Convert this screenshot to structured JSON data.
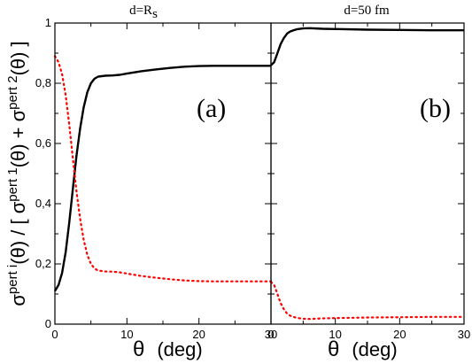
{
  "chart_data": [
    {
      "type": "line",
      "title_main": "d=R",
      "title_sub": "s",
      "panel_label": "(a)",
      "xlabel": "θ (deg)",
      "xlim": [
        0,
        30
      ],
      "ylim": [
        0,
        1
      ],
      "x_ticks": [
        "0",
        "10",
        "20",
        "30"
      ],
      "y_ticks": [
        "0",
        "0,2",
        "0,4",
        "0,6",
        "0,8",
        "1"
      ],
      "series": [
        {
          "style": "solid",
          "color": "#000000",
          "x": [
            0,
            0.5,
            1,
            1.5,
            2,
            2.5,
            3,
            3.5,
            4,
            4.5,
            5,
            5.5,
            6,
            7,
            8,
            9,
            10,
            12,
            14,
            16,
            18,
            20,
            22,
            24,
            26,
            28,
            30
          ],
          "y": [
            0.11,
            0.13,
            0.17,
            0.24,
            0.34,
            0.45,
            0.56,
            0.65,
            0.72,
            0.77,
            0.8,
            0.815,
            0.822,
            0.825,
            0.826,
            0.828,
            0.832,
            0.84,
            0.846,
            0.851,
            0.855,
            0.857,
            0.858,
            0.858,
            0.858,
            0.858,
            0.858
          ]
        },
        {
          "style": "dotted",
          "color": "#ff0000",
          "x": [
            0,
            0.5,
            1,
            1.5,
            2,
            2.5,
            3,
            3.5,
            4,
            4.5,
            5,
            5.5,
            6,
            7,
            8,
            9,
            10,
            12,
            14,
            16,
            18,
            20,
            22,
            24,
            26,
            28,
            30
          ],
          "y": [
            0.89,
            0.87,
            0.83,
            0.76,
            0.66,
            0.55,
            0.44,
            0.35,
            0.28,
            0.23,
            0.2,
            0.185,
            0.178,
            0.175,
            0.174,
            0.172,
            0.168,
            0.16,
            0.154,
            0.149,
            0.145,
            0.143,
            0.142,
            0.142,
            0.142,
            0.142,
            0.142
          ]
        }
      ]
    },
    {
      "type": "line",
      "title_main": "d=50 fm",
      "title_sub": "",
      "panel_label": "(b)",
      "xlabel": "θ (deg)",
      "xlim": [
        0,
        30
      ],
      "ylim": [
        0,
        1
      ],
      "x_ticks": [
        "0",
        "10",
        "20",
        "30"
      ],
      "y_ticks": [],
      "series": [
        {
          "style": "solid",
          "color": "#000000",
          "x": [
            0,
            0.5,
            1,
            1.5,
            2,
            2.5,
            3,
            3.5,
            4,
            5,
            6,
            8,
            10,
            15,
            20,
            25,
            30
          ],
          "y": [
            0.86,
            0.87,
            0.9,
            0.93,
            0.95,
            0.965,
            0.972,
            0.976,
            0.979,
            0.982,
            0.983,
            0.981,
            0.98,
            0.978,
            0.977,
            0.976,
            0.976
          ]
        },
        {
          "style": "dotted",
          "color": "#ff0000",
          "x": [
            0,
            0.5,
            1,
            1.5,
            2,
            2.5,
            3,
            3.5,
            4,
            5,
            6,
            8,
            10,
            15,
            20,
            25,
            30
          ],
          "y": [
            0.14,
            0.13,
            0.1,
            0.07,
            0.05,
            0.035,
            0.028,
            0.024,
            0.021,
            0.018,
            0.017,
            0.019,
            0.02,
            0.022,
            0.023,
            0.024,
            0.024
          ]
        }
      ]
    }
  ],
  "shared_ylabel": {
    "p1": "σ",
    "p1_sup": "pert i",
    "p2": "(θ) / [ σ",
    "p2_sup": "pert 1",
    "p3": "(θ) + σ",
    "p3_sup": "pert 2",
    "p4": "(θ) ]"
  },
  "shared_xlabel_theta": "θ",
  "shared_xlabel_unit": "(deg)"
}
